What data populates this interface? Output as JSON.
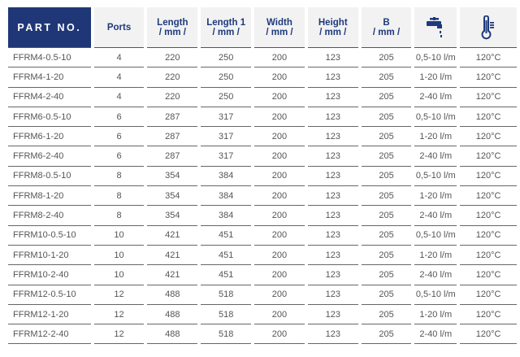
{
  "headers": {
    "part_no": "PART NO.",
    "ports": "Ports",
    "length": [
      "Length",
      "/ mm /"
    ],
    "length1": [
      "Length 1",
      "/ mm /"
    ],
    "width": [
      "Width",
      "/ mm /"
    ],
    "height": [
      "Height",
      "/ mm /"
    ],
    "b": [
      "B",
      "/ mm /"
    ],
    "flow_icon": "faucet-icon",
    "temp_icon": "thermometer-icon"
  },
  "colors": {
    "header_accent": "#1f3777",
    "header_text": "#1e3a7b",
    "header_bg": "#f2f2f2"
  },
  "rows": [
    [
      "FFRM4-0.5-10",
      "4",
      "220",
      "250",
      "200",
      "123",
      "205",
      "0,5-10 l/m",
      "120°C"
    ],
    [
      "FFRM4-1-20",
      "4",
      "220",
      "250",
      "200",
      "123",
      "205",
      "1-20 l/m",
      "120°C"
    ],
    [
      "FFRM4-2-40",
      "4",
      "220",
      "250",
      "200",
      "123",
      "205",
      "2-40 l/m",
      "120°C"
    ],
    [
      "FFRM6-0.5-10",
      "6",
      "287",
      "317",
      "200",
      "123",
      "205",
      "0,5-10 l/m",
      "120°C"
    ],
    [
      "FFRM6-1-20",
      "6",
      "287",
      "317",
      "200",
      "123",
      "205",
      "1-20 l/m",
      "120°C"
    ],
    [
      "FFRM6-2-40",
      "6",
      "287",
      "317",
      "200",
      "123",
      "205",
      "2-40 l/m",
      "120°C"
    ],
    [
      "FFRM8-0.5-10",
      "8",
      "354",
      "384",
      "200",
      "123",
      "205",
      "0,5-10 l/m",
      "120°C"
    ],
    [
      "FFRM8-1-20",
      "8",
      "354",
      "384",
      "200",
      "123",
      "205",
      "1-20 l/m",
      "120°C"
    ],
    [
      "FFRM8-2-40",
      "8",
      "354",
      "384",
      "200",
      "123",
      "205",
      "2-40 l/m",
      "120°C"
    ],
    [
      "FFRM10-0.5-10",
      "10",
      "421",
      "451",
      "200",
      "123",
      "205",
      "0,5-10 l/m",
      "120°C"
    ],
    [
      "FFRM10-1-20",
      "10",
      "421",
      "451",
      "200",
      "123",
      "205",
      "1-20 l/m",
      "120°C"
    ],
    [
      "FFRM10-2-40",
      "10",
      "421",
      "451",
      "200",
      "123",
      "205",
      "2-40 l/m",
      "120°C"
    ],
    [
      "FFRM12-0.5-10",
      "12",
      "488",
      "518",
      "200",
      "123",
      "205",
      "0,5-10 l/m",
      "120°C"
    ],
    [
      "FFRM12-1-20",
      "12",
      "488",
      "518",
      "200",
      "123",
      "205",
      "1-20 l/m",
      "120°C"
    ],
    [
      "FFRM12-2-40",
      "12",
      "488",
      "518",
      "200",
      "123",
      "205",
      "2-40 l/m",
      "120°C"
    ]
  ]
}
